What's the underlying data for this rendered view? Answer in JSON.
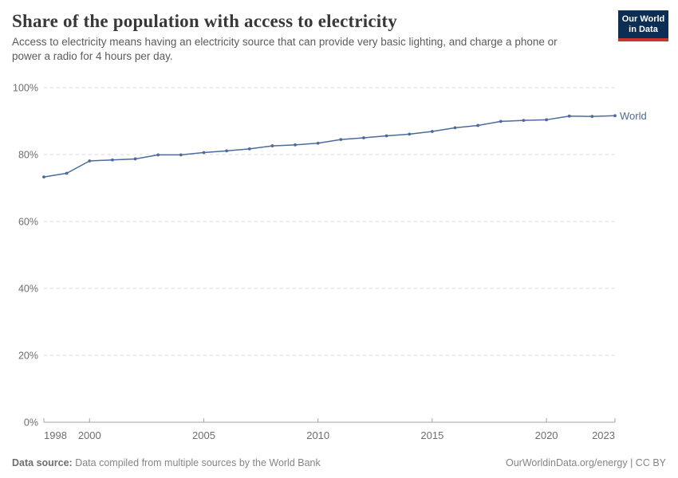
{
  "header": {
    "title": "Share of the population with access to electricity",
    "subtitle": "Access to electricity means having an electricity source that can provide very basic lighting, and charge a phone or power a radio for 4 hours per day.",
    "logo": {
      "line1": "Our World",
      "line2": "in Data"
    }
  },
  "footer": {
    "datasource_label": "Data source:",
    "datasource_text": " Data compiled from multiple sources by the World Bank",
    "attribution": "OurWorldinData.org/energy | CC BY"
  },
  "colors": {
    "series_blue": "#4c6a9c",
    "gridline": "#d8d8d8",
    "axis_line": "#a3a3a3",
    "tick_label": "#6e6e6e",
    "logo_navy": "#0c2e54",
    "logo_red": "#cb342c"
  },
  "chart_data": {
    "type": "line",
    "title": "Share of the population with access to electricity",
    "subtitle": "Access to electricity means having an electricity source that can provide very basic lighting, and charge a phone or power a radio for 4 hours per day.",
    "xlabel": "",
    "ylabel": "",
    "ylim": [
      0,
      100
    ],
    "yticks": [
      0,
      20,
      40,
      60,
      80,
      100
    ],
    "ytick_suffix": "%",
    "xticks": [
      1998,
      2000,
      2005,
      2010,
      2015,
      2020,
      2023
    ],
    "grid": "horizontal-dashed",
    "legend_position": "inline-end-label",
    "x": [
      1998,
      1999,
      2000,
      2001,
      2002,
      2003,
      2004,
      2005,
      2006,
      2007,
      2008,
      2009,
      2010,
      2011,
      2012,
      2013,
      2014,
      2015,
      2016,
      2017,
      2018,
      2019,
      2020,
      2021,
      2022,
      2023
    ],
    "series": [
      {
        "name": "World",
        "color": "#4c6a9c",
        "values": [
          73.3,
          74.4,
          78.1,
          78.4,
          78.7,
          79.9,
          79.9,
          80.6,
          81.1,
          81.7,
          82.6,
          82.9,
          83.4,
          84.5,
          85.0,
          85.6,
          86.1,
          86.9,
          88.0,
          88.7,
          89.9,
          90.2,
          90.4,
          91.5,
          91.4,
          91.6
        ]
      }
    ]
  }
}
